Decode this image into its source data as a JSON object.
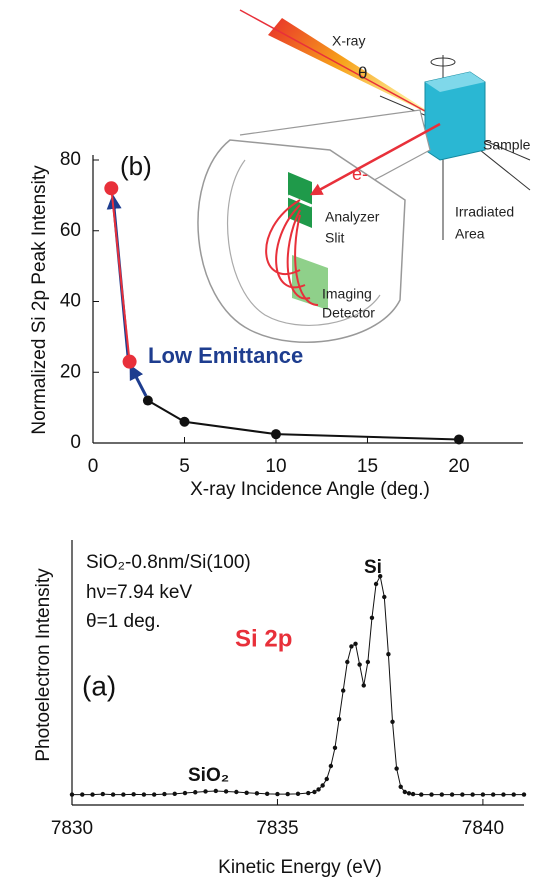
{
  "chart_data": [
    {
      "type": "line",
      "panel_label": "(b)",
      "annotation": "Low Emittance",
      "x_label": "X-ray Incidence Angle  (deg.)",
      "y_label": "Normalized Si 2p Peak Intensity",
      "xlim": [
        0,
        23.5
      ],
      "ylim": [
        0,
        80
      ],
      "xticks": [
        0,
        5,
        10,
        15,
        20
      ],
      "yticks": [
        0,
        20,
        40,
        60,
        80
      ],
      "series": [
        {
          "color": "#111111",
          "x": [
            3,
            5,
            10,
            20
          ],
          "values": [
            12,
            6,
            2.5,
            1
          ]
        },
        {
          "color": "#e8303a",
          "x": [
            1,
            2
          ],
          "values": [
            72,
            23
          ]
        }
      ]
    },
    {
      "type": "line",
      "panel_label": "(a)",
      "x_label": "Kinetic Energy (eV)",
      "y_label": "Photoelectron Intensity",
      "annotations": [
        "SiO₂-0.8nm/Si(100)",
        "hν=7.94 keV",
        "θ=1 deg."
      ],
      "highlight": "Si 2p",
      "peak_labels": [
        "Si",
        "SiO₂"
      ],
      "xlim": [
        7830,
        7841
      ],
      "ylim": [
        0,
        100
      ],
      "xticks": [
        7830,
        7835,
        7840
      ],
      "series": [
        {
          "color": "#111111",
          "x": [
            7830,
            7830.25,
            7830.5,
            7830.75,
            7831,
            7831.25,
            7831.5,
            7831.75,
            7832,
            7832.25,
            7832.5,
            7832.75,
            7833,
            7833.25,
            7833.5,
            7833.75,
            7834,
            7834.25,
            7834.5,
            7834.75,
            7835,
            7835.25,
            7835.5,
            7835.75,
            7835.9,
            7836,
            7836.1,
            7836.2,
            7836.3,
            7836.4,
            7836.5,
            7836.6,
            7836.7,
            7836.8,
            7836.9,
            7837,
            7837.1,
            7837.2,
            7837.3,
            7837.4,
            7837.5,
            7837.6,
            7837.7,
            7837.8,
            7837.9,
            7838,
            7838.1,
            7838.2,
            7838.3,
            7838.5,
            7838.75,
            7839,
            7839.25,
            7839.5,
            7839.75,
            7840,
            7840.25,
            7840.5,
            7840.75,
            7841
          ],
          "values": [
            4,
            4,
            4,
            4.2,
            4,
            4,
            4.1,
            4,
            4,
            4.2,
            4.3,
            4.6,
            4.9,
            5.2,
            5.4,
            5.2,
            5,
            4.7,
            4.5,
            4.3,
            4.2,
            4.2,
            4.3,
            4.6,
            5,
            6,
            7.5,
            10,
            15,
            22,
            33,
            44,
            55,
            61,
            62,
            54,
            46,
            55,
            72,
            85,
            88,
            80,
            58,
            32,
            14,
            7,
            5,
            4.5,
            4.2,
            4,
            4,
            4,
            4,
            4,
            4,
            4,
            4,
            4,
            4,
            4
          ]
        }
      ]
    }
  ],
  "diagram": {
    "xray": "X-ray",
    "theta": "θ",
    "sample": "Sample",
    "irradiated": [
      "Irradiated",
      "Area"
    ],
    "electron": "e-",
    "analyzer": [
      "Analyzer",
      "Slit"
    ],
    "detector": [
      "Imaging",
      "Detector"
    ]
  }
}
